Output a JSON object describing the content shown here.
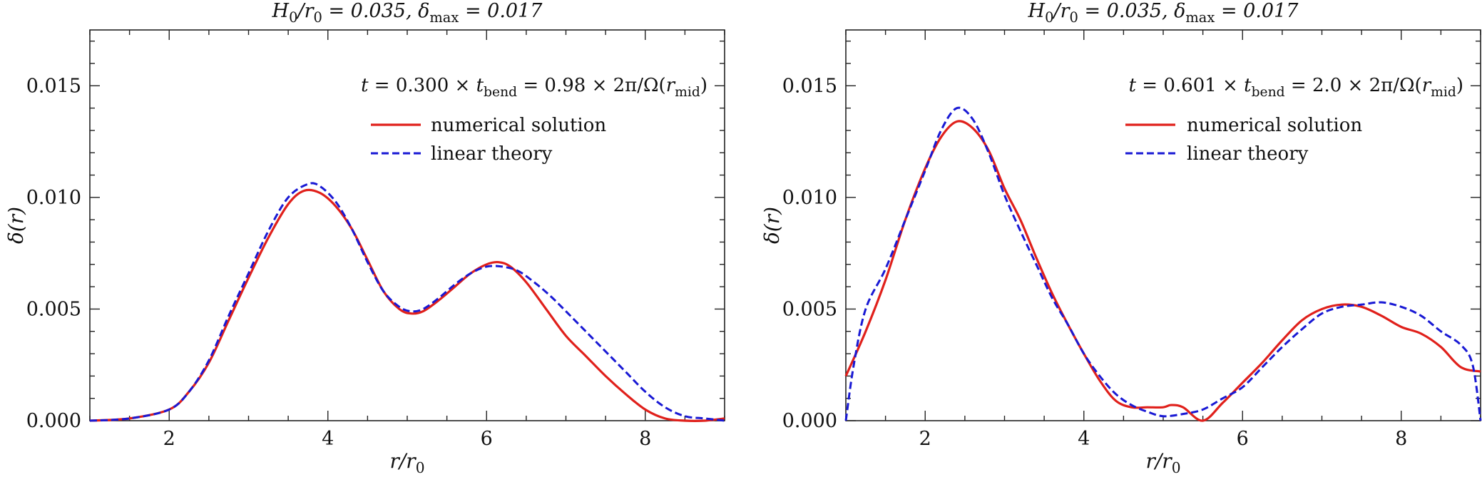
{
  "chart_data": [
    {
      "type": "line",
      "title": "H₀/r₀ = 0.035,   δmax = 0.017",
      "annotation": "t = 0.300 × tbend = 0.98 × 2π/Ω(rmid)",
      "xlabel": "r/r₀",
      "ylabel": "δ(r)",
      "xlim": [
        1,
        9
      ],
      "ylim": [
        0,
        0.0175
      ],
      "xticks": [
        2,
        4,
        6,
        8
      ],
      "yticks": [
        0.0,
        0.005,
        0.01,
        0.015
      ],
      "ytick_labels": [
        "0.000",
        "0.005",
        "0.010",
        "0.015"
      ],
      "legend_position": "top-right",
      "grid": false,
      "series": [
        {
          "name": "numerical solution",
          "color": "#e0201b",
          "style": "solid",
          "x": [
            1.0,
            1.5,
            2.0,
            2.25,
            2.5,
            2.75,
            3.0,
            3.25,
            3.5,
            3.7,
            3.9,
            4.1,
            4.3,
            4.5,
            4.7,
            4.9,
            5.05,
            5.2,
            5.4,
            5.6,
            5.8,
            6.0,
            6.15,
            6.3,
            6.5,
            6.75,
            7.0,
            7.25,
            7.5,
            7.75,
            8.0,
            8.25,
            8.5,
            8.75,
            9.0
          ],
          "y": [
            0.0,
            0.0001,
            0.0005,
            0.0013,
            0.0026,
            0.0045,
            0.0064,
            0.0082,
            0.0097,
            0.0103,
            0.0102,
            0.0096,
            0.0086,
            0.0072,
            0.0058,
            0.005,
            0.0048,
            0.0049,
            0.0054,
            0.006,
            0.0066,
            0.007,
            0.0071,
            0.0069,
            0.0062,
            0.005,
            0.0038,
            0.0029,
            0.002,
            0.0012,
            0.0005,
            0.0001,
            0.0,
            0.0,
            0.0001
          ]
        },
        {
          "name": "linear theory",
          "color": "#1919d4",
          "style": "dashed",
          "x": [
            1.0,
            1.5,
            2.0,
            2.25,
            2.5,
            2.75,
            3.0,
            3.25,
            3.5,
            3.75,
            3.9,
            4.1,
            4.3,
            4.5,
            4.7,
            4.9,
            5.05,
            5.2,
            5.4,
            5.6,
            5.8,
            6.0,
            6.2,
            6.4,
            6.6,
            6.8,
            7.0,
            7.25,
            7.5,
            7.75,
            8.0,
            8.25,
            8.5,
            8.75,
            9.0
          ],
          "y": [
            0.0,
            0.0001,
            0.0005,
            0.0013,
            0.0027,
            0.0047,
            0.0066,
            0.0085,
            0.01,
            0.0106,
            0.0105,
            0.0098,
            0.0086,
            0.0071,
            0.0058,
            0.0051,
            0.0049,
            0.005,
            0.0055,
            0.0061,
            0.0066,
            0.0069,
            0.0069,
            0.0067,
            0.0062,
            0.0056,
            0.0049,
            0.004,
            0.0031,
            0.0022,
            0.0013,
            0.0006,
            0.0002,
            0.0001,
            0.0
          ]
        }
      ]
    },
    {
      "type": "line",
      "title": "H₀/r₀ = 0.035,   δmax = 0.017",
      "annotation": "t = 0.601 × tbend = 2.0 × 2π/Ω(rmid)",
      "xlabel": "r/r₀",
      "ylabel": "δ(r)",
      "xlim": [
        1,
        9
      ],
      "ylim": [
        0,
        0.0175
      ],
      "xticks": [
        2,
        4,
        6,
        8
      ],
      "yticks": [
        0.0,
        0.005,
        0.01,
        0.015
      ],
      "ytick_labels": [
        "0.000",
        "0.005",
        "0.010",
        "0.015"
      ],
      "legend_position": "top-right",
      "grid": false,
      "series": [
        {
          "name": "numerical solution",
          "color": "#e0201b",
          "style": "solid",
          "x": [
            1.0,
            1.25,
            1.5,
            1.75,
            2.0,
            2.2,
            2.4,
            2.6,
            2.8,
            3.0,
            3.2,
            3.4,
            3.6,
            3.8,
            4.0,
            4.2,
            4.4,
            4.6,
            4.8,
            5.0,
            5.1,
            5.25,
            5.5,
            5.75,
            6.0,
            6.25,
            6.5,
            6.75,
            7.0,
            7.25,
            7.5,
            7.75,
            8.0,
            8.25,
            8.5,
            8.75,
            9.0
          ],
          "y": [
            0.002,
            0.004,
            0.0063,
            0.009,
            0.0113,
            0.0127,
            0.0134,
            0.0131,
            0.0121,
            0.0104,
            0.009,
            0.0073,
            0.0057,
            0.0043,
            0.003,
            0.0018,
            0.0009,
            0.0006,
            0.0006,
            0.0006,
            0.0007,
            0.0006,
            0.0,
            0.0008,
            0.0017,
            0.0026,
            0.0036,
            0.0045,
            0.005,
            0.0052,
            0.0051,
            0.0047,
            0.0042,
            0.0039,
            0.0033,
            0.0024,
            0.0022
          ]
        },
        {
          "name": "linear theory",
          "color": "#1919d4",
          "style": "dashed",
          "x": [
            1.0,
            1.1,
            1.25,
            1.5,
            1.75,
            2.0,
            2.2,
            2.4,
            2.6,
            2.8,
            3.0,
            3.2,
            3.4,
            3.6,
            3.8,
            4.0,
            4.2,
            4.4,
            4.6,
            4.8,
            5.0,
            5.25,
            5.5,
            5.75,
            6.0,
            6.25,
            6.5,
            6.75,
            7.0,
            7.25,
            7.5,
            7.75,
            8.0,
            8.25,
            8.5,
            8.75,
            8.9,
            9.0
          ],
          "y": [
            0.0,
            0.0025,
            0.005,
            0.0068,
            0.009,
            0.0112,
            0.013,
            0.014,
            0.0135,
            0.012,
            0.0101,
            0.0085,
            0.007,
            0.0055,
            0.0043,
            0.003,
            0.002,
            0.0012,
            0.0007,
            0.0004,
            0.0002,
            0.0003,
            0.0005,
            0.001,
            0.0015,
            0.0024,
            0.0033,
            0.0041,
            0.0048,
            0.0051,
            0.0052,
            0.0053,
            0.0051,
            0.0047,
            0.004,
            0.0034,
            0.0025,
            0.0
          ]
        }
      ]
    }
  ]
}
